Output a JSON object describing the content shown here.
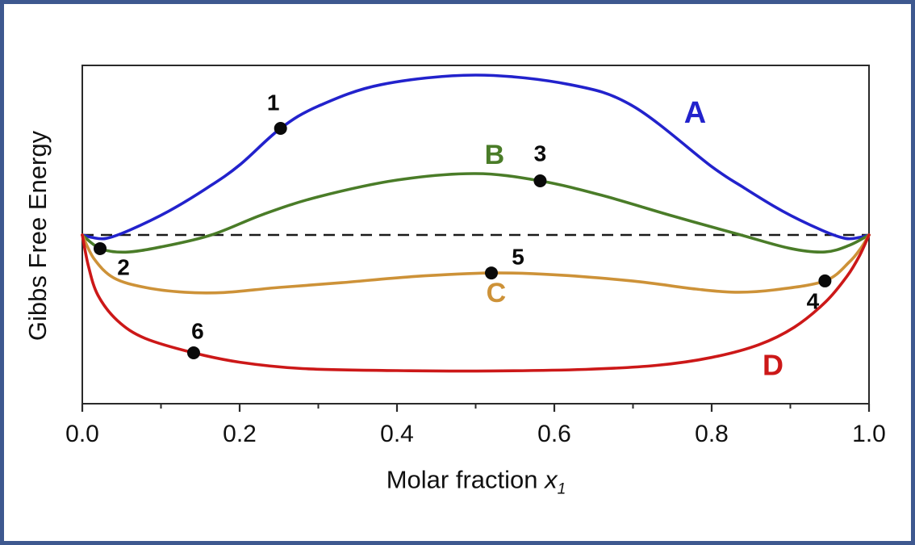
{
  "figure": {
    "border_color": "#3e588f",
    "background": "#ffffff"
  },
  "axes": {
    "y_label": "Gibbs Free Energy",
    "x_label_prefix": "Molar fraction ",
    "x_label_var": "x",
    "x_label_sub": "1",
    "x_range": [
      0,
      1
    ],
    "x_ticks_major": [
      {
        "value": 0.0,
        "label": "0.0"
      },
      {
        "value": 0.2,
        "label": "0.2"
      },
      {
        "value": 0.4,
        "label": "0.4"
      },
      {
        "value": 0.6,
        "label": "0.6"
      },
      {
        "value": 0.8,
        "label": "0.8"
      },
      {
        "value": 1.0,
        "label": "1.0"
      }
    ],
    "x_ticks_minor": [
      0.1,
      0.3,
      0.5,
      0.7,
      0.9
    ],
    "y_ticks": []
  },
  "chart_data": {
    "type": "line",
    "title": "",
    "xlabel": "Molar fraction x1",
    "ylabel": "Gibbs Free Energy",
    "x_range": [
      0,
      1
    ],
    "y_units": "relative (no numeric scale shown); 0 = dashed reference line joining pure-component endpoints",
    "baseline": {
      "value": 0,
      "style": "dashed",
      "color": "#1a1a1a",
      "note": "horizontal dashed reference line from x=0 to x=1"
    },
    "series": [
      {
        "name": "A",
        "color": "#2222cc",
        "label_pos": [
          0.779,
          0.766
        ],
        "points": [
          [
            0.0,
            0.0
          ],
          [
            0.012,
            -0.015
          ],
          [
            0.03,
            -0.022
          ],
          [
            0.06,
            0.03
          ],
          [
            0.11,
            0.15
          ],
          [
            0.16,
            0.3
          ],
          [
            0.2,
            0.44
          ],
          [
            0.252,
            0.67
          ],
          [
            0.3,
            0.81
          ],
          [
            0.38,
            0.945
          ],
          [
            0.5,
            1.005
          ],
          [
            0.62,
            0.945
          ],
          [
            0.7,
            0.81
          ],
          [
            0.8,
            0.43
          ],
          [
            0.84,
            0.3
          ],
          [
            0.89,
            0.15
          ],
          [
            0.94,
            0.03
          ],
          [
            0.97,
            -0.022
          ],
          [
            0.988,
            -0.015
          ],
          [
            1.0,
            0.0
          ]
        ]
      },
      {
        "name": "B",
        "color": "#4a7c28",
        "label_pos": [
          0.524,
          0.503
        ],
        "points": [
          [
            0.0,
            0.0
          ],
          [
            0.023,
            -0.086
          ],
          [
            0.055,
            -0.108
          ],
          [
            0.1,
            -0.075
          ],
          [
            0.164,
            0.0
          ],
          [
            0.23,
            0.13
          ],
          [
            0.3,
            0.24
          ],
          [
            0.4,
            0.345
          ],
          [
            0.5,
            0.386
          ],
          [
            0.582,
            0.34
          ],
          [
            0.66,
            0.25
          ],
          [
            0.75,
            0.12
          ],
          [
            0.837,
            0.0
          ],
          [
            0.9,
            -0.085
          ],
          [
            0.944,
            -0.107
          ],
          [
            0.975,
            -0.065
          ],
          [
            1.0,
            0.0
          ]
        ]
      },
      {
        "name": "C",
        "color": "#cd9238",
        "label_pos": [
          0.526,
          -0.365
        ],
        "points": [
          [
            0.0,
            0.0
          ],
          [
            0.015,
            -0.15
          ],
          [
            0.04,
            -0.27
          ],
          [
            0.08,
            -0.33
          ],
          [
            0.13,
            -0.36
          ],
          [
            0.18,
            -0.362
          ],
          [
            0.25,
            -0.33
          ],
          [
            0.33,
            -0.3
          ],
          [
            0.42,
            -0.262
          ],
          [
            0.52,
            -0.239
          ],
          [
            0.6,
            -0.25
          ],
          [
            0.7,
            -0.29
          ],
          [
            0.78,
            -0.34
          ],
          [
            0.83,
            -0.36
          ],
          [
            0.88,
            -0.345
          ],
          [
            0.944,
            -0.289
          ],
          [
            0.975,
            -0.17
          ],
          [
            0.99,
            -0.08
          ],
          [
            1.0,
            0.0
          ]
        ]
      },
      {
        "name": "D",
        "color": "#cc1818",
        "label_pos": [
          0.878,
          -0.817
        ],
        "points": [
          [
            0.0,
            0.0
          ],
          [
            0.008,
            -0.2
          ],
          [
            0.02,
            -0.38
          ],
          [
            0.045,
            -0.54
          ],
          [
            0.08,
            -0.65
          ],
          [
            0.1415,
            -0.741
          ],
          [
            0.2,
            -0.8
          ],
          [
            0.28,
            -0.84
          ],
          [
            0.4,
            -0.853
          ],
          [
            0.52,
            -0.855
          ],
          [
            0.64,
            -0.845
          ],
          [
            0.73,
            -0.82
          ],
          [
            0.8,
            -0.77
          ],
          [
            0.86,
            -0.69
          ],
          [
            0.905,
            -0.58
          ],
          [
            0.945,
            -0.42
          ],
          [
            0.972,
            -0.26
          ],
          [
            0.988,
            -0.13
          ],
          [
            1.0,
            0.0
          ]
        ]
      }
    ],
    "markers": [
      {
        "label": "1",
        "series": "A",
        "x": 0.252,
        "v": 0.67,
        "label_offset": [
          -9,
          -32
        ]
      },
      {
        "label": "2",
        "series": "B",
        "x": 0.0226,
        "v": -0.086,
        "label_offset": [
          29,
          23
        ]
      },
      {
        "label": "3",
        "series": "B",
        "x": 0.582,
        "v": 0.34,
        "label_offset": [
          0,
          -34
        ]
      },
      {
        "label": "4",
        "series": "C",
        "x": 0.944,
        "v": -0.289,
        "label_offset": [
          -15,
          25
        ]
      },
      {
        "label": "5",
        "series": "C",
        "x": 0.52,
        "v": -0.239,
        "label_offset": [
          33,
          -20
        ]
      },
      {
        "label": "6",
        "series": "D",
        "x": 0.1415,
        "v": -0.741,
        "label_offset": [
          5,
          -27
        ]
      }
    ],
    "legend": "none (series labeled inline: A blue, B green, C orange, D red)",
    "grid": false
  }
}
